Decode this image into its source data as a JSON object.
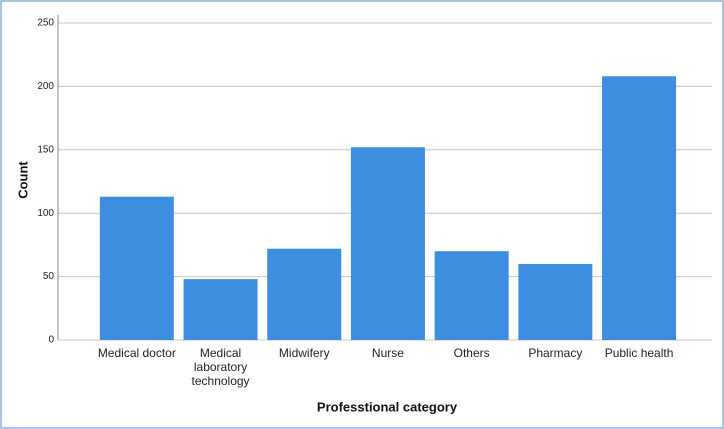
{
  "chart_data": {
    "type": "bar",
    "x_label": "Professtional category",
    "y_label": "Count",
    "categories": [
      "Medical doctor",
      "Medical laboratory technology",
      "Midwifery",
      "Nurse",
      "Others",
      "Pharmacy",
      "Public health"
    ],
    "values": [
      113,
      48,
      72,
      152,
      70,
      60,
      208
    ],
    "color": "#3d8de0",
    "ylim": [
      0,
      250
    ],
    "yticks": [
      0,
      50,
      100,
      150,
      200,
      250
    ],
    "grid": true
  }
}
